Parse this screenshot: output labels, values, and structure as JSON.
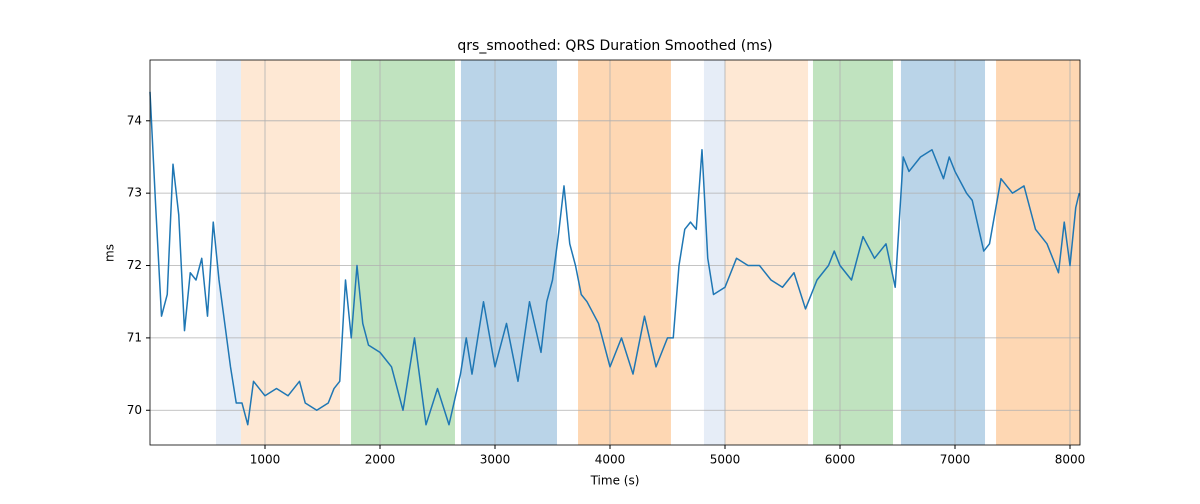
{
  "chart_data": {
    "type": "line",
    "title": "qrs_smoothed: QRS Duration Smoothed (ms)",
    "x_label": "Time (s)",
    "y_label": "ms",
    "x": [
      0,
      50,
      100,
      150,
      200,
      250,
      300,
      350,
      400,
      450,
      500,
      550,
      600,
      650,
      700,
      750,
      800,
      850,
      900,
      1000,
      1100,
      1200,
      1300,
      1350,
      1450,
      1550,
      1600,
      1650,
      1700,
      1750,
      1800,
      1850,
      1900,
      2000,
      2100,
      2200,
      2300,
      2400,
      2500,
      2600,
      2700,
      2750,
      2800,
      2900,
      3000,
      3100,
      3200,
      3300,
      3400,
      3450,
      3500,
      3550,
      3600,
      3650,
      3700,
      3750,
      3800,
      3900,
      4000,
      4100,
      4200,
      4300,
      4400,
      4500,
      4550,
      4600,
      4650,
      4700,
      4750,
      4800,
      4850,
      4900,
      5000,
      5100,
      5200,
      5300,
      5400,
      5500,
      5600,
      5700,
      5800,
      5900,
      5950,
      6000,
      6100,
      6200,
      6300,
      6400,
      6480,
      6550,
      6600,
      6700,
      6800,
      6900,
      6950,
      7000,
      7100,
      7150,
      7250,
      7300,
      7400,
      7500,
      7600,
      7700,
      7800,
      7900,
      7950,
      8000,
      8050,
      8080
    ],
    "series": [
      {
        "name": "qrs_smoothed",
        "color": "#1f77b4",
        "values": [
          74.4,
          72.8,
          71.3,
          71.6,
          73.4,
          72.7,
          71.1,
          71.9,
          71.8,
          72.1,
          71.3,
          72.6,
          71.8,
          71.2,
          70.6,
          70.1,
          70.1,
          69.8,
          70.4,
          70.2,
          70.3,
          70.2,
          70.4,
          70.1,
          70.0,
          70.1,
          70.3,
          70.4,
          71.8,
          71.0,
          72.0,
          71.2,
          70.9,
          70.8,
          70.6,
          70.0,
          71.0,
          69.8,
          70.3,
          69.8,
          70.5,
          71.0,
          70.5,
          71.5,
          70.6,
          71.2,
          70.4,
          71.5,
          70.8,
          71.5,
          71.8,
          72.4,
          73.1,
          72.3,
          72.0,
          71.6,
          71.5,
          71.2,
          70.6,
          71.0,
          70.5,
          71.3,
          70.6,
          71.0,
          71.0,
          72.0,
          72.5,
          72.6,
          72.5,
          73.6,
          72.1,
          71.6,
          71.7,
          72.1,
          72.0,
          72.0,
          71.8,
          71.7,
          71.9,
          71.4,
          71.8,
          72.0,
          72.2,
          72.0,
          71.8,
          72.4,
          72.1,
          72.3,
          71.7,
          73.5,
          73.3,
          73.5,
          73.6,
          73.2,
          73.5,
          73.3,
          73.0,
          72.9,
          72.2,
          72.3,
          73.2,
          73.0,
          73.1,
          72.5,
          72.3,
          71.9,
          72.6,
          72.0,
          72.8,
          73.0
        ]
      }
    ],
    "spans": [
      {
        "start": 574,
        "end": 791,
        "color": "#e6edf7"
      },
      {
        "start": 791,
        "end": 1652,
        "color": "#fee8d4"
      },
      {
        "start": 1748,
        "end": 2652,
        "color": "#c0e3bf"
      },
      {
        "start": 2704,
        "end": 3539,
        "color": "#bad4e8"
      },
      {
        "start": 3722,
        "end": 4530,
        "color": "#fed7b3"
      },
      {
        "start": 4817,
        "end": 5000,
        "color": "#e6edf7"
      },
      {
        "start": 5000,
        "end": 5722,
        "color": "#fee8d4"
      },
      {
        "start": 5765,
        "end": 6461,
        "color": "#c0e3bf"
      },
      {
        "start": 6530,
        "end": 7261,
        "color": "#bad4e8"
      },
      {
        "start": 7357,
        "end": 8087,
        "color": "#fed7b3"
      }
    ],
    "xlim": [
      0,
      8087
    ],
    "ylim": [
      69.52,
      74.84
    ],
    "xticks": [
      1000,
      2000,
      3000,
      4000,
      5000,
      6000,
      7000,
      8000
    ],
    "yticks": [
      70,
      71,
      72,
      73,
      74
    ],
    "grid": true
  }
}
